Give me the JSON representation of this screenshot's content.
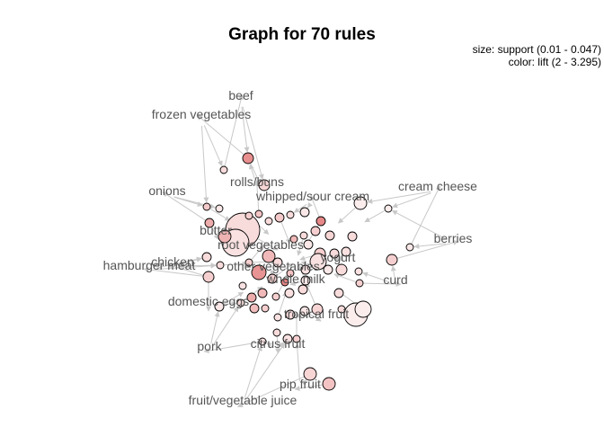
{
  "chart_data": {
    "type": "graph",
    "title": "Graph for 70 rules",
    "legend": {
      "size_line": "size: support (0.01 - 0.047)",
      "color_line": "color: lift (2 - 3.295)",
      "placement": "top-right"
    },
    "colors": {
      "edge": "#c8c8c8",
      "label": "#555555",
      "node_low": "#fdf3f3",
      "node_high": "#e37c7c",
      "node_border": "#000000"
    },
    "items": [
      "beef",
      "frozen vegetables",
      "rolls/buns",
      "onions",
      "whipped/sour cream",
      "cream cheese",
      "butter",
      "root vegetables",
      "berries",
      "chicken",
      "hamburger meat",
      "other vegetables",
      "yogurt",
      "curd",
      "whole milk",
      "domestic eggs",
      "tropical fruit",
      "pork",
      "citrus fruit",
      "pip fruit",
      "fruit/vegetable juice"
    ],
    "rules_count": 70
  }
}
